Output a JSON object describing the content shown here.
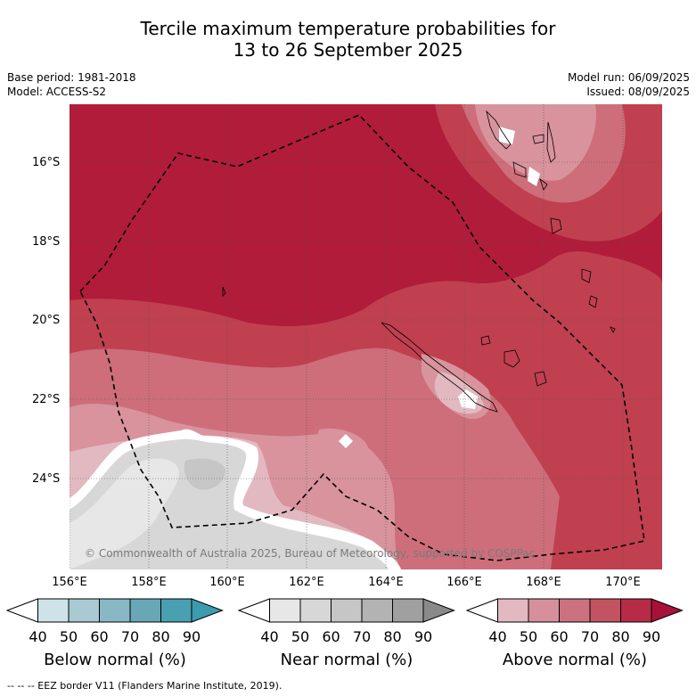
{
  "title": {
    "line1": "Tercile maximum temperature probabilities for",
    "line2": "13 to 26 September 2025"
  },
  "meta": {
    "base_period": "Base period: 1981-2018",
    "model": "Model: ACCESS-S2",
    "model_run": "Model run: 06/09/2025",
    "issued": "Issued: 08/09/2025"
  },
  "map": {
    "lat_labels": [
      "16°S",
      "18°S",
      "20°S",
      "22°S",
      "24°S"
    ],
    "lon_labels": [
      "156°E",
      "158°E",
      "160°E",
      "162°E",
      "164°E",
      "166°E",
      "168°E",
      "170°E"
    ],
    "copyright": "© Commonwealth of Australia 2025, Bureau of Meteorology, supported by COSPPac",
    "background_color": "#b01c3a"
  },
  "colorbars": [
    {
      "label": "Below normal (%)",
      "ticks": [
        "40",
        "50",
        "60",
        "70",
        "80",
        "90"
      ],
      "colors": [
        "#ffffff",
        "#cde3e8",
        "#a9cad2",
        "#88b8c4",
        "#68a7b5",
        "#48a0b1",
        "#3b9bb0"
      ]
    },
    {
      "label": "Near normal (%)",
      "ticks": [
        "40",
        "50",
        "60",
        "70",
        "80",
        "90"
      ],
      "colors": [
        "#ffffff",
        "#e7e7e7",
        "#d7d7d7",
        "#c6c6c6",
        "#b3b3b3",
        "#a0a0a0",
        "#8a8a8a"
      ]
    },
    {
      "label": "Above normal (%)",
      "ticks": [
        "40",
        "50",
        "60",
        "70",
        "80",
        "90"
      ],
      "colors": [
        "#ffffff",
        "#e3b9c1",
        "#d6909c",
        "#cc727f",
        "#c25462",
        "#b72b46",
        "#a8123a"
      ]
    }
  ],
  "footer": "-- -- -- EEZ border V11 (Flanders Marine Institute, 2019)."
}
